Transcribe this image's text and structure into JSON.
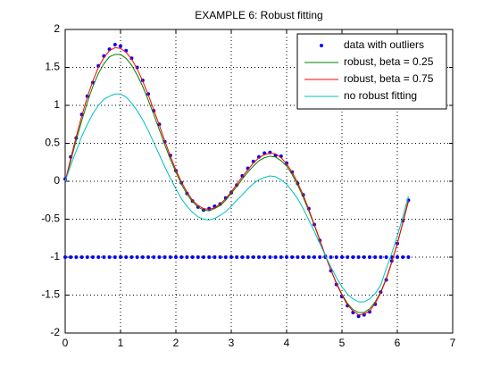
{
  "chart_data": {
    "type": "line",
    "title": "EXAMPLE 6: Robust fitting",
    "x": [
      0,
      0.1,
      0.2,
      0.3,
      0.4,
      0.5,
      0.6,
      0.7,
      0.8,
      0.9,
      1.0,
      1.1,
      1.2,
      1.3,
      1.4,
      1.5,
      1.6,
      1.7,
      1.8,
      1.9,
      2.0,
      2.1,
      2.2,
      2.3,
      2.4,
      2.5,
      2.6,
      2.7,
      2.8,
      2.9,
      3.0,
      3.1,
      3.2,
      3.3,
      3.4,
      3.5,
      3.6,
      3.7,
      3.8,
      3.9,
      4.0,
      4.1,
      4.2,
      4.3,
      4.4,
      4.5,
      4.6,
      4.7,
      4.8,
      4.9,
      5.0,
      5.1,
      5.2,
      5.3,
      5.4,
      5.5,
      5.6,
      5.7,
      5.8,
      5.9,
      6.0,
      6.1,
      6.2
    ],
    "series": [
      {
        "name": "data with outliers",
        "color": "#0000ff",
        "marker": "dot",
        "x": [
          0,
          0.1,
          0.2,
          0.3,
          0.4,
          0.5,
          0.6,
          0.7,
          0.8,
          0.9,
          1.0,
          1.1,
          1.2,
          1.3,
          1.4,
          1.5,
          1.6,
          1.7,
          1.8,
          1.9,
          2.0,
          2.1,
          2.2,
          2.3,
          2.4,
          2.5,
          2.6,
          2.7,
          2.8,
          2.9,
          3.0,
          3.1,
          3.2,
          3.3,
          3.4,
          3.5,
          3.6,
          3.7,
          3.8,
          3.9,
          4.0,
          4.1,
          4.2,
          4.3,
          4.4,
          4.5,
          4.6,
          4.7,
          4.8,
          4.9,
          5.0,
          5.1,
          5.2,
          5.3,
          5.4,
          5.5,
          5.6,
          5.7,
          5.8,
          5.9,
          6.0,
          6.1,
          6.2,
          0,
          0.1,
          0.2,
          0.3,
          0.4,
          0.5,
          0.6,
          0.7,
          0.8,
          0.9,
          1.0,
          1.1,
          1.2,
          1.3,
          1.4,
          1.5,
          1.6,
          1.7,
          1.8,
          1.9,
          2.0,
          2.1,
          2.2,
          2.3,
          2.4,
          2.5,
          2.6,
          2.7,
          2.8,
          2.9,
          3.0,
          3.1,
          3.2,
          3.3,
          3.4,
          3.5,
          3.6,
          3.7,
          3.8,
          3.9,
          4.0,
          4.1,
          4.2,
          4.3,
          4.4,
          4.5,
          4.6,
          4.7,
          4.8,
          4.9,
          5.0,
          5.1,
          5.2,
          5.3,
          5.4,
          5.5,
          5.6,
          5.7,
          5.8,
          5.9,
          6.0,
          6.1,
          6.2
        ],
        "values": [
          0.03,
          0.32,
          0.57,
          0.88,
          1.12,
          1.3,
          1.52,
          1.65,
          1.74,
          1.8,
          1.78,
          1.72,
          1.62,
          1.5,
          1.33,
          1.15,
          0.93,
          0.75,
          0.52,
          0.34,
          0.14,
          -0.02,
          -0.16,
          -0.26,
          -0.34,
          -0.38,
          -0.36,
          -0.33,
          -0.3,
          -0.22,
          -0.15,
          -0.05,
          0.07,
          0.17,
          0.26,
          0.32,
          0.37,
          0.38,
          0.34,
          0.33,
          0.24,
          0.12,
          -0.03,
          -0.18,
          -0.36,
          -0.57,
          -0.78,
          -0.99,
          -1.18,
          -1.36,
          -1.52,
          -1.64,
          -1.73,
          -1.78,
          -1.76,
          -1.72,
          -1.62,
          -1.46,
          -1.3,
          -1.05,
          -0.82,
          -0.52,
          -0.25,
          -1,
          -1,
          -1,
          -1,
          -1,
          -1,
          -1,
          -1,
          -1,
          -1,
          -1,
          -1,
          -1,
          -1,
          -1,
          -1,
          -1,
          -1,
          -1,
          -1,
          -1,
          -1,
          -1,
          -1,
          -1,
          -1,
          -1,
          -1,
          -1,
          -1,
          -1,
          -1,
          -1,
          -1,
          -1,
          -1,
          -1,
          -1,
          -1,
          -1,
          -1,
          -1,
          -1,
          -1,
          -1,
          -1,
          -1,
          -1,
          -1,
          -1,
          -1,
          -1,
          -1,
          -1,
          -1,
          -1,
          -1,
          -1,
          -1,
          -1,
          -1,
          -1,
          -1
        ]
      },
      {
        "name": "robust, beta = 0.25",
        "color": "#008000",
        "values": [
          0,
          0.27,
          0.54,
          0.8,
          1.04,
          1.25,
          1.42,
          1.55,
          1.64,
          1.67,
          1.67,
          1.62,
          1.53,
          1.4,
          1.25,
          1.07,
          0.88,
          0.68,
          0.48,
          0.29,
          0.12,
          -0.04,
          -0.17,
          -0.27,
          -0.34,
          -0.38,
          -0.39,
          -0.36,
          -0.32,
          -0.25,
          -0.16,
          -0.07,
          0.03,
          0.12,
          0.2,
          0.27,
          0.31,
          0.33,
          0.32,
          0.27,
          0.2,
          0.09,
          -0.05,
          -0.21,
          -0.39,
          -0.58,
          -0.78,
          -0.98,
          -1.17,
          -1.34,
          -1.49,
          -1.61,
          -1.69,
          -1.73,
          -1.73,
          -1.68,
          -1.59,
          -1.46,
          -1.28,
          -1.06,
          -0.82,
          -0.55,
          -0.27
        ]
      },
      {
        "name": "robust, beta = 0.75",
        "color": "#ff0000",
        "values": [
          0,
          0.3,
          0.59,
          0.86,
          1.11,
          1.32,
          1.5,
          1.63,
          1.72,
          1.76,
          1.75,
          1.7,
          1.61,
          1.48,
          1.32,
          1.14,
          0.94,
          0.74,
          0.53,
          0.33,
          0.15,
          -0.01,
          -0.14,
          -0.25,
          -0.32,
          -0.36,
          -0.37,
          -0.35,
          -0.3,
          -0.23,
          -0.14,
          -0.04,
          0.06,
          0.15,
          0.24,
          0.31,
          0.35,
          0.37,
          0.36,
          0.31,
          0.23,
          0.12,
          -0.02,
          -0.18,
          -0.37,
          -0.57,
          -0.77,
          -0.98,
          -1.17,
          -1.35,
          -1.5,
          -1.63,
          -1.71,
          -1.76,
          -1.75,
          -1.71,
          -1.61,
          -1.47,
          -1.29,
          -1.07,
          -0.82,
          -0.54,
          -0.25
        ]
      },
      {
        "name": "no robust fitting",
        "color": "#00bfbf",
        "values": [
          0,
          0.21,
          0.4,
          0.59,
          0.75,
          0.89,
          1.0,
          1.08,
          1.12,
          1.15,
          1.15,
          1.11,
          1.03,
          0.93,
          0.81,
          0.67,
          0.51,
          0.35,
          0.19,
          0.04,
          -0.1,
          -0.23,
          -0.33,
          -0.41,
          -0.47,
          -0.5,
          -0.51,
          -0.49,
          -0.45,
          -0.4,
          -0.33,
          -0.25,
          -0.18,
          -0.1,
          -0.03,
          0.02,
          0.05,
          0.07,
          0.06,
          0.02,
          -0.04,
          -0.13,
          -0.23,
          -0.36,
          -0.51,
          -0.66,
          -0.82,
          -0.98,
          -1.13,
          -1.27,
          -1.39,
          -1.49,
          -1.55,
          -1.59,
          -1.59,
          -1.55,
          -1.48,
          -1.37,
          -1.15,
          -0.95,
          -0.72,
          -0.47,
          -0.2
        ]
      }
    ],
    "xlim": [
      0,
      7
    ],
    "xticks": [
      0,
      1,
      2,
      3,
      4,
      5,
      6,
      7
    ],
    "ylim": [
      -2,
      2
    ],
    "yticks": [
      -2,
      -1.5,
      -1,
      -0.5,
      0,
      0.5,
      1,
      1.5,
      2
    ],
    "grid": true,
    "legend": "top-right"
  }
}
